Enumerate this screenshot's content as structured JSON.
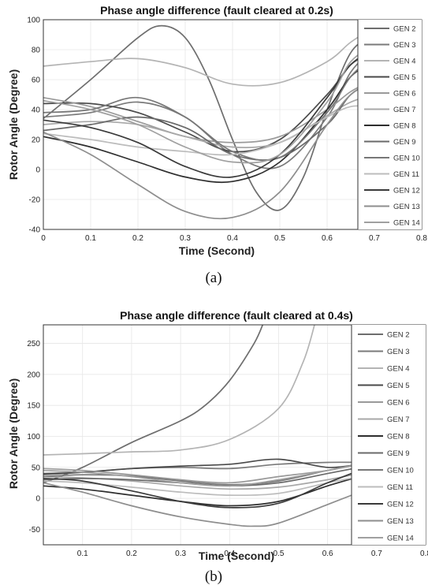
{
  "chart_data": [
    {
      "type": "line",
      "title": "Phase angle difference (fault cleared at 0.2s)",
      "xlabel": "Time (Second)",
      "ylabel": "Rotor Angle (Degree)",
      "xlim": [
        0,
        0.8
      ],
      "ylim": [
        -40,
        100
      ],
      "xticks": [
        "0",
        "0.1",
        "0.2",
        "0.3",
        "0.4",
        "0.5",
        "0.6",
        "0.7",
        "0.8"
      ],
      "yticks": [
        "-40",
        "-20",
        "0",
        "20",
        "40",
        "60",
        "80",
        "100"
      ],
      "grid": true,
      "legend_position": "right",
      "caption": "(a)",
      "series": [
        {
          "name": "GEN 2",
          "color": "#6e6e6e",
          "x": [
            0,
            0.1,
            0.2,
            0.25,
            0.3,
            0.35,
            0.4,
            0.45,
            0.5,
            0.55,
            0.6,
            0.65,
            0.7,
            0.715
          ],
          "y": [
            34,
            60,
            88,
            96,
            88,
            60,
            20,
            -15,
            -27,
            -5,
            40,
            78,
            90,
            93
          ]
        },
        {
          "name": "GEN 3",
          "color": "#7a7a7a",
          "x": [
            0,
            0.1,
            0.2,
            0.3,
            0.4,
            0.5,
            0.6,
            0.65,
            0.7,
            0.715
          ],
          "y": [
            35,
            38,
            45,
            35,
            10,
            2,
            35,
            65,
            80,
            78
          ]
        },
        {
          "name": "GEN 4",
          "color": "#b4b4b4",
          "x": [
            0,
            0.1,
            0.2,
            0.3,
            0.4,
            0.5,
            0.6,
            0.65,
            0.7,
            0.715
          ],
          "y": [
            69,
            72,
            74,
            68,
            57,
            58,
            72,
            85,
            95,
            97
          ]
        },
        {
          "name": "GEN 5",
          "color": "#4a4a4a",
          "x": [
            0,
            0.1,
            0.2,
            0.3,
            0.4,
            0.5,
            0.6,
            0.65,
            0.7,
            0.715
          ],
          "y": [
            44,
            44,
            38,
            25,
            12,
            20,
            50,
            70,
            78,
            76
          ]
        },
        {
          "name": "GEN 6",
          "color": "#9a9a9a",
          "x": [
            0,
            0.1,
            0.2,
            0.3,
            0.4,
            0.5,
            0.6,
            0.65,
            0.7,
            0.715
          ],
          "y": [
            48,
            42,
            32,
            22,
            18,
            22,
            40,
            52,
            60,
            62
          ]
        },
        {
          "name": "GEN 7",
          "color": "#a8a8a8",
          "x": [
            0,
            0.1,
            0.2,
            0.3,
            0.4,
            0.5,
            0.6,
            0.65,
            0.7,
            0.715
          ],
          "y": [
            30,
            32,
            30,
            22,
            15,
            18,
            36,
            45,
            50,
            50
          ]
        },
        {
          "name": "GEN 8",
          "color": "#2e2e2e",
          "x": [
            0,
            0.1,
            0.2,
            0.3,
            0.4,
            0.5,
            0.6,
            0.65,
            0.7,
            0.715
          ],
          "y": [
            22,
            15,
            5,
            -5,
            -8,
            5,
            40,
            62,
            72,
            70
          ]
        },
        {
          "name": "GEN 9",
          "color": "#6a6a6a",
          "x": [
            0,
            0.1,
            0.2,
            0.3,
            0.4,
            0.5,
            0.6,
            0.65,
            0.7,
            0.715
          ],
          "y": [
            26,
            30,
            35,
            28,
            10,
            8,
            30,
            50,
            58,
            56
          ]
        },
        {
          "name": "GEN 10",
          "color": "#777777",
          "x": [
            0,
            0.1,
            0.2,
            0.3,
            0.4,
            0.5,
            0.6,
            0.65,
            0.7,
            0.715
          ],
          "y": [
            38,
            40,
            48,
            35,
            12,
            8,
            38,
            62,
            75,
            73
          ]
        },
        {
          "name": "GEN 11",
          "color": "#bcbcbc",
          "x": [
            0,
            0.1,
            0.2,
            0.3,
            0.4,
            0.5,
            0.6,
            0.65,
            0.7,
            0.715
          ],
          "y": [
            24,
            20,
            15,
            12,
            10,
            18,
            35,
            42,
            42,
            42
          ]
        },
        {
          "name": "GEN 12",
          "color": "#3a3a3a",
          "x": [
            0,
            0.1,
            0.2,
            0.3,
            0.4,
            0.5,
            0.6,
            0.65,
            0.7,
            0.715
          ],
          "y": [
            33,
            28,
            18,
            2,
            -5,
            10,
            48,
            70,
            80,
            78
          ]
        },
        {
          "name": "GEN 13",
          "color": "#8e8e8e",
          "x": [
            0,
            0.1,
            0.2,
            0.3,
            0.4,
            0.5,
            0.6,
            0.65,
            0.7,
            0.715
          ],
          "y": [
            25,
            10,
            -10,
            -28,
            -32,
            -15,
            30,
            50,
            58,
            56
          ]
        },
        {
          "name": "GEN 14",
          "color": "#a0a0a0",
          "x": [
            0,
            0.1,
            0.2,
            0.3,
            0.4,
            0.5,
            0.6,
            0.65,
            0.7,
            0.715
          ],
          "y": [
            46,
            40,
            30,
            15,
            5,
            10,
            45,
            72,
            82,
            80
          ]
        }
      ]
    },
    {
      "type": "line",
      "title": "Phase angle difference (fault cleared at 0.4s)",
      "xlabel": "Time (Second)",
      "ylabel": "Rotor Angle (Degree)",
      "xlim": [
        0.02,
        0.8
      ],
      "ylim": [
        -75,
        280
      ],
      "xticks": [
        "0.1",
        "0.2",
        "0.3",
        "0.4",
        "0.5",
        "0.6",
        "0.7",
        "0.8"
      ],
      "xtick_values": [
        0.1,
        0.2,
        0.3,
        0.4,
        0.5,
        0.6,
        0.7,
        0.8
      ],
      "yticks": [
        "-50",
        "0",
        "50",
        "100",
        "150",
        "200",
        "250"
      ],
      "ytick_values": [
        -50,
        0,
        50,
        100,
        150,
        200,
        250
      ],
      "grid": true,
      "legend_position": "right",
      "caption": "(b)",
      "series": [
        {
          "name": "GEN 2",
          "color": "#6e6e6e",
          "x": [
            0.02,
            0.1,
            0.2,
            0.3,
            0.35,
            0.4,
            0.45,
            0.47
          ],
          "y": [
            25,
            50,
            90,
            125,
            150,
            190,
            250,
            285
          ]
        },
        {
          "name": "GEN 3",
          "color": "#7a7a7a",
          "x": [
            0.02,
            0.1,
            0.2,
            0.3,
            0.4,
            0.5,
            0.6,
            0.665
          ],
          "y": [
            38,
            42,
            48,
            50,
            48,
            55,
            58,
            58
          ]
        },
        {
          "name": "GEN 4",
          "color": "#b4b4b4",
          "x": [
            0.02,
            0.1,
            0.2,
            0.3,
            0.4,
            0.5,
            0.55,
            0.575
          ],
          "y": [
            70,
            72,
            75,
            78,
            95,
            145,
            220,
            285
          ]
        },
        {
          "name": "GEN 5",
          "color": "#4a4a4a",
          "x": [
            0.02,
            0.1,
            0.2,
            0.3,
            0.4,
            0.5,
            0.6,
            0.665
          ],
          "y": [
            40,
            42,
            48,
            52,
            55,
            63,
            50,
            55
          ]
        },
        {
          "name": "GEN 6",
          "color": "#9a9a9a",
          "x": [
            0.02,
            0.1,
            0.2,
            0.3,
            0.4,
            0.5,
            0.6,
            0.665
          ],
          "y": [
            48,
            45,
            38,
            30,
            25,
            35,
            45,
            55
          ]
        },
        {
          "name": "GEN 7",
          "color": "#a8a8a8",
          "x": [
            0.02,
            0.1,
            0.2,
            0.3,
            0.4,
            0.5,
            0.6,
            0.665
          ],
          "y": [
            35,
            33,
            28,
            20,
            15,
            18,
            30,
            40
          ]
        },
        {
          "name": "GEN 8",
          "color": "#2e2e2e",
          "x": [
            0.02,
            0.1,
            0.2,
            0.3,
            0.4,
            0.5,
            0.6,
            0.665
          ],
          "y": [
            20,
            15,
            5,
            -5,
            -12,
            -5,
            20,
            35
          ]
        },
        {
          "name": "GEN 9",
          "color": "#6a6a6a",
          "x": [
            0.02,
            0.1,
            0.2,
            0.3,
            0.4,
            0.5,
            0.6,
            0.665
          ],
          "y": [
            30,
            32,
            30,
            25,
            20,
            25,
            40,
            50
          ]
        },
        {
          "name": "GEN 10",
          "color": "#777777",
          "x": [
            0.02,
            0.1,
            0.2,
            0.3,
            0.4,
            0.5,
            0.6,
            0.665
          ],
          "y": [
            35,
            38,
            36,
            28,
            22,
            28,
            45,
            55
          ]
        },
        {
          "name": "GEN 11",
          "color": "#bcbcbc",
          "x": [
            0.02,
            0.1,
            0.2,
            0.3,
            0.4,
            0.5,
            0.6,
            0.665
          ],
          "y": [
            28,
            25,
            18,
            10,
            5,
            8,
            25,
            35
          ]
        },
        {
          "name": "GEN 12",
          "color": "#3a3a3a",
          "x": [
            0.02,
            0.1,
            0.2,
            0.3,
            0.4,
            0.5,
            0.6,
            0.665
          ],
          "y": [
            32,
            28,
            12,
            -5,
            -15,
            -8,
            25,
            45
          ]
        },
        {
          "name": "GEN 13",
          "color": "#8e8e8e",
          "x": [
            0.02,
            0.1,
            0.2,
            0.3,
            0.4,
            0.45,
            0.5,
            0.6,
            0.665
          ],
          "y": [
            25,
            10,
            -12,
            -30,
            -42,
            -45,
            -40,
            -10,
            10
          ]
        },
        {
          "name": "GEN 14",
          "color": "#a0a0a0",
          "x": [
            0.02,
            0.1,
            0.2,
            0.3,
            0.4,
            0.5,
            0.6,
            0.665
          ],
          "y": [
            45,
            42,
            35,
            25,
            20,
            30,
            45,
            55
          ]
        }
      ]
    }
  ]
}
